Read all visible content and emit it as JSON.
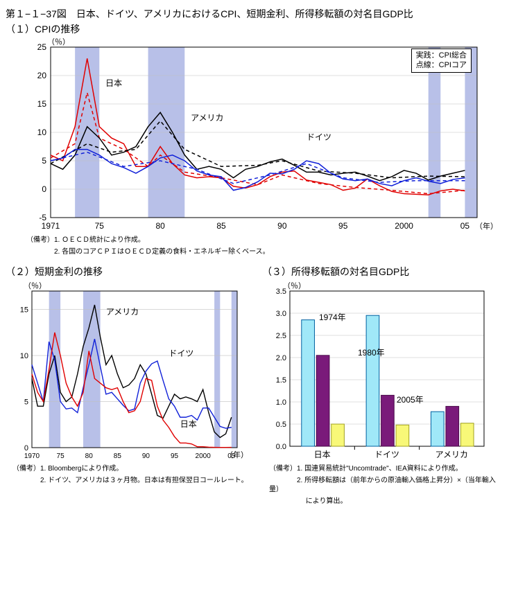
{
  "title_main": "第１−１−37図　日本、ドイツ、アメリカにおけるCPI、短期金利、所得移転額の対名目GDP比",
  "title_sub1": "（１）CPIの推移",
  "title_sub2": "（２）短期金利の推移",
  "title_sub3": "（３）所得移転額の対名目GDP比",
  "chart1": {
    "type": "line",
    "unit": "（％）",
    "x_axis_suffix": "（年）",
    "xlim": [
      1971,
      2006
    ],
    "ylim": [
      -5,
      25
    ],
    "yticks": [
      -5,
      0,
      5,
      10,
      15,
      20,
      25
    ],
    "xticks": [
      1971,
      1975,
      1980,
      1985,
      1990,
      1995,
      2000,
      2005
    ],
    "xtick_labels": [
      "1971",
      "75",
      "80",
      "85",
      "90",
      "95",
      "2000",
      "05"
    ],
    "shade_ranges": [
      [
        1973,
        1975
      ],
      [
        1979,
        1982
      ],
      [
        2002,
        2003
      ],
      [
        2005,
        2006
      ]
    ],
    "shade_color": "#b8c0e8",
    "grid_color": "#c0c0c0",
    "background_color": "#ffffff",
    "series": {
      "japan_total": {
        "color": "#e00000",
        "dash": false,
        "label": "日本",
        "x": [
          1971,
          1972,
          1973,
          1974,
          1975,
          1976,
          1977,
          1978,
          1979,
          1980,
          1981,
          1982,
          1983,
          1984,
          1985,
          1986,
          1987,
          1988,
          1989,
          1990,
          1991,
          1992,
          1993,
          1994,
          1995,
          1996,
          1997,
          1998,
          1999,
          2000,
          2001,
          2002,
          2003,
          2004,
          2005
        ],
        "y": [
          6.0,
          5.0,
          11.0,
          23.0,
          11.0,
          9.0,
          8.0,
          4.0,
          4.0,
          7.5,
          4.5,
          2.5,
          2.0,
          2.2,
          2.0,
          0.5,
          0.2,
          0.8,
          2.2,
          3.0,
          3.2,
          1.6,
          1.2,
          0.8,
          -0.2,
          0.2,
          1.8,
          0.6,
          -0.4,
          -0.8,
          -0.9,
          -1.0,
          -0.3,
          0.0,
          -0.3
        ]
      },
      "japan_core": {
        "color": "#e00000",
        "dash": true,
        "x": [
          1971,
          1973,
          1974,
          1975,
          1977,
          1979,
          1980,
          1982,
          1985,
          1988,
          1990,
          1993,
          1996,
          1999,
          2002,
          2005
        ],
        "y": [
          5.5,
          8.0,
          17.0,
          9.0,
          7.0,
          4.0,
          6.0,
          3.0,
          2.0,
          0.8,
          2.5,
          1.0,
          0.3,
          -0.2,
          -0.8,
          -0.2
        ]
      },
      "usa_total": {
        "color": "#000000",
        "dash": false,
        "label": "アメリカ",
        "x": [
          1971,
          1972,
          1973,
          1974,
          1975,
          1976,
          1977,
          1978,
          1979,
          1980,
          1981,
          1982,
          1983,
          1984,
          1985,
          1986,
          1987,
          1988,
          1989,
          1990,
          1991,
          1992,
          1993,
          1994,
          1995,
          1996,
          1997,
          1998,
          1999,
          2000,
          2001,
          2002,
          2003,
          2004,
          2005
        ],
        "y": [
          4.5,
          3.5,
          6.0,
          11.0,
          9.0,
          6.0,
          6.5,
          7.5,
          11.0,
          13.5,
          10.0,
          6.0,
          3.5,
          4.0,
          3.5,
          2.0,
          3.5,
          4.0,
          4.8,
          5.3,
          4.2,
          3.0,
          3.0,
          2.5,
          2.8,
          3.0,
          2.3,
          1.5,
          2.2,
          3.3,
          2.8,
          1.6,
          2.3,
          2.8,
          3.3
        ]
      },
      "usa_core": {
        "color": "#000000",
        "dash": true,
        "x": [
          1971,
          1974,
          1976,
          1978,
          1980,
          1982,
          1985,
          1988,
          1990,
          1993,
          1996,
          1999,
          2002,
          2005
        ],
        "y": [
          4.5,
          8.0,
          6.5,
          7.0,
          12.0,
          7.0,
          4.0,
          4.2,
          5.0,
          3.2,
          2.8,
          2.0,
          2.3,
          2.2
        ]
      },
      "germany_total": {
        "color": "#1020d8",
        "dash": false,
        "label": "ドイツ",
        "x": [
          1971,
          1972,
          1973,
          1974,
          1975,
          1976,
          1977,
          1978,
          1979,
          1980,
          1981,
          1982,
          1983,
          1984,
          1985,
          1986,
          1987,
          1988,
          1989,
          1990,
          1991,
          1992,
          1993,
          1994,
          1995,
          1996,
          1997,
          1998,
          1999,
          2000,
          2001,
          2002,
          2003,
          2004,
          2005
        ],
        "y": [
          5.0,
          5.5,
          7.0,
          7.0,
          6.0,
          4.5,
          3.8,
          2.8,
          4.0,
          5.5,
          6.0,
          5.0,
          3.2,
          2.5,
          2.2,
          -0.2,
          0.3,
          1.3,
          2.8,
          2.7,
          3.5,
          5.0,
          4.5,
          2.8,
          1.8,
          1.5,
          1.8,
          1.0,
          0.6,
          1.5,
          2.0,
          1.4,
          1.0,
          1.7,
          2.0
        ]
      },
      "germany_core": {
        "color": "#1020d8",
        "dash": true,
        "x": [
          1971,
          1974,
          1977,
          1980,
          1983,
          1986,
          1989,
          1992,
          1995,
          1998,
          2001,
          2005
        ],
        "y": [
          5.0,
          6.5,
          4.0,
          5.0,
          3.5,
          1.0,
          2.5,
          4.5,
          2.0,
          1.2,
          1.5,
          1.5
        ]
      }
    },
    "legend": {
      "lines": [
        "実践：CPI総合",
        "点線：CPIコア"
      ]
    },
    "label_positions": {
      "日本": [
        1975.5,
        18
      ],
      "アメリカ": [
        1982.5,
        12
      ],
      "ドイツ": [
        1992,
        8.5
      ]
    },
    "notes": [
      "（備考）1. ＯＥＣＤ統計により作成。",
      "　　　　2. 各国のコアＣＰＩはＯＥＣＤ定義の食料・エネルギー除くベース。"
    ]
  },
  "chart2": {
    "type": "line",
    "unit": "（％）",
    "x_axis_suffix": "（年）",
    "xlim": [
      1970,
      2006
    ],
    "ylim": [
      0,
      17
    ],
    "yticks": [
      0,
      5,
      10,
      15
    ],
    "xticks": [
      1970,
      1975,
      1980,
      1985,
      1990,
      1995,
      2000,
      2005
    ],
    "xtick_labels": [
      "1970",
      "75",
      "80",
      "85",
      "90",
      "95",
      "2000",
      "05"
    ],
    "shade_ranges": [
      [
        1973,
        1975
      ],
      [
        1979,
        1982
      ],
      [
        2002,
        2003
      ],
      [
        2005,
        2006
      ]
    ],
    "shade_color": "#b8c0e8",
    "series": {
      "usa": {
        "color": "#000000",
        "label": "アメリカ",
        "x": [
          1970,
          1971,
          1972,
          1973,
          1974,
          1975,
          1976,
          1977,
          1978,
          1979,
          1980,
          1981,
          1982,
          1983,
          1984,
          1985,
          1986,
          1987,
          1988,
          1989,
          1990,
          1991,
          1992,
          1993,
          1994,
          1995,
          1996,
          1997,
          1998,
          1999,
          2000,
          2001,
          2002,
          2003,
          2004,
          2005
        ],
        "y": [
          7.5,
          4.5,
          4.5,
          8.0,
          10.0,
          6.0,
          5.0,
          5.5,
          8.0,
          11.0,
          13.0,
          15.5,
          12.0,
          9.0,
          10.0,
          8.0,
          6.5,
          6.8,
          7.5,
          9.0,
          8.0,
          5.8,
          3.5,
          3.2,
          4.5,
          5.8,
          5.3,
          5.5,
          5.3,
          5.0,
          6.3,
          3.8,
          1.7,
          1.1,
          1.5,
          3.3
        ]
      },
      "germany": {
        "color": "#1020d8",
        "label": "ドイツ",
        "x": [
          1970,
          1971,
          1972,
          1973,
          1974,
          1975,
          1976,
          1977,
          1978,
          1979,
          1980,
          1981,
          1982,
          1983,
          1984,
          1985,
          1986,
          1987,
          1988,
          1989,
          1990,
          1991,
          1992,
          1993,
          1994,
          1995,
          1996,
          1997,
          1998,
          1999,
          2000,
          2001,
          2002,
          2003,
          2004,
          2005
        ],
        "y": [
          9.0,
          7.0,
          5.0,
          11.5,
          9.5,
          5.0,
          4.2,
          4.3,
          3.8,
          6.5,
          9.0,
          11.8,
          8.8,
          5.8,
          6.0,
          5.3,
          4.6,
          4.0,
          4.2,
          7.0,
          8.3,
          9.1,
          9.4,
          7.3,
          5.3,
          4.5,
          3.3,
          3.3,
          3.5,
          3.0,
          4.3,
          4.3,
          3.3,
          2.3,
          2.1,
          2.2
        ]
      },
      "japan": {
        "color": "#e00000",
        "label": "日本",
        "x": [
          1970,
          1971,
          1972,
          1973,
          1974,
          1975,
          1976,
          1977,
          1978,
          1979,
          1980,
          1981,
          1982,
          1983,
          1984,
          1985,
          1986,
          1987,
          1988,
          1989,
          1990,
          1991,
          1992,
          1993,
          1994,
          1995,
          1996,
          1997,
          1998,
          1999,
          2000,
          2001,
          2002,
          2003,
          2004,
          2005
        ],
        "y": [
          8.0,
          6.0,
          5.0,
          8.5,
          12.5,
          10.0,
          7.0,
          5.5,
          4.5,
          6.0,
          10.5,
          7.5,
          7.0,
          6.5,
          6.3,
          6.5,
          5.0,
          3.8,
          4.0,
          5.0,
          7.5,
          7.3,
          4.5,
          3.0,
          2.2,
          1.2,
          0.5,
          0.5,
          0.4,
          0.1,
          0.1,
          0.05,
          0.03,
          0.02,
          0.02,
          0.03
        ]
      }
    },
    "label_positions": {
      "アメリカ": [
        1983,
        14.5
      ],
      "ドイツ": [
        1994,
        10
      ],
      "日本": [
        1996,
        2.3
      ]
    },
    "notes": [
      "（備考）1. Bloombergにより作成。",
      "　　　　2. ドイツ、アメリカは３ヶ月物。日本は有担保翌日コールレート。"
    ]
  },
  "chart3": {
    "type": "bar",
    "unit": "（％）",
    "categories": [
      "日本",
      "ドイツ",
      "アメリカ"
    ],
    "groups": [
      {
        "label": "1974年",
        "color_fill": "#a0e8f8",
        "color_border": "#0060a0",
        "values": [
          2.85,
          2.95,
          0.78
        ]
      },
      {
        "label": "1980年",
        "color_fill": "#7a1a7a",
        "color_border": "#4a0a4a",
        "values": [
          2.05,
          1.15,
          0.9
        ]
      },
      {
        "label": "2005年",
        "color_fill": "#f8f878",
        "color_border": "#a0a020",
        "values": [
          0.5,
          0.48,
          0.52
        ]
      }
    ],
    "ylim": [
      0.0,
      3.5
    ],
    "yticks": [
      0.0,
      0.5,
      1.0,
      1.5,
      2.0,
      2.5,
      3.0,
      3.5
    ],
    "ytick_labels": [
      "0.0",
      "0.5",
      "1.0",
      "1.5",
      "2.0",
      "2.5",
      "3.0",
      "3.5"
    ],
    "label_positions": {
      "1974年": [
        0.15,
        2.95
      ],
      "1980年": [
        0.35,
        2.15
      ],
      "2005年": [
        0.55,
        1.1
      ]
    },
    "notes": [
      "（備考）1. 国連貿易統計\"Uncomtrade\"、IEA資料により作成。",
      "　　　　2. 所得移転額は（前年からの原油輸入価格上昇分）×（当年輸入量）",
      "　　　　　 により算出。"
    ]
  }
}
